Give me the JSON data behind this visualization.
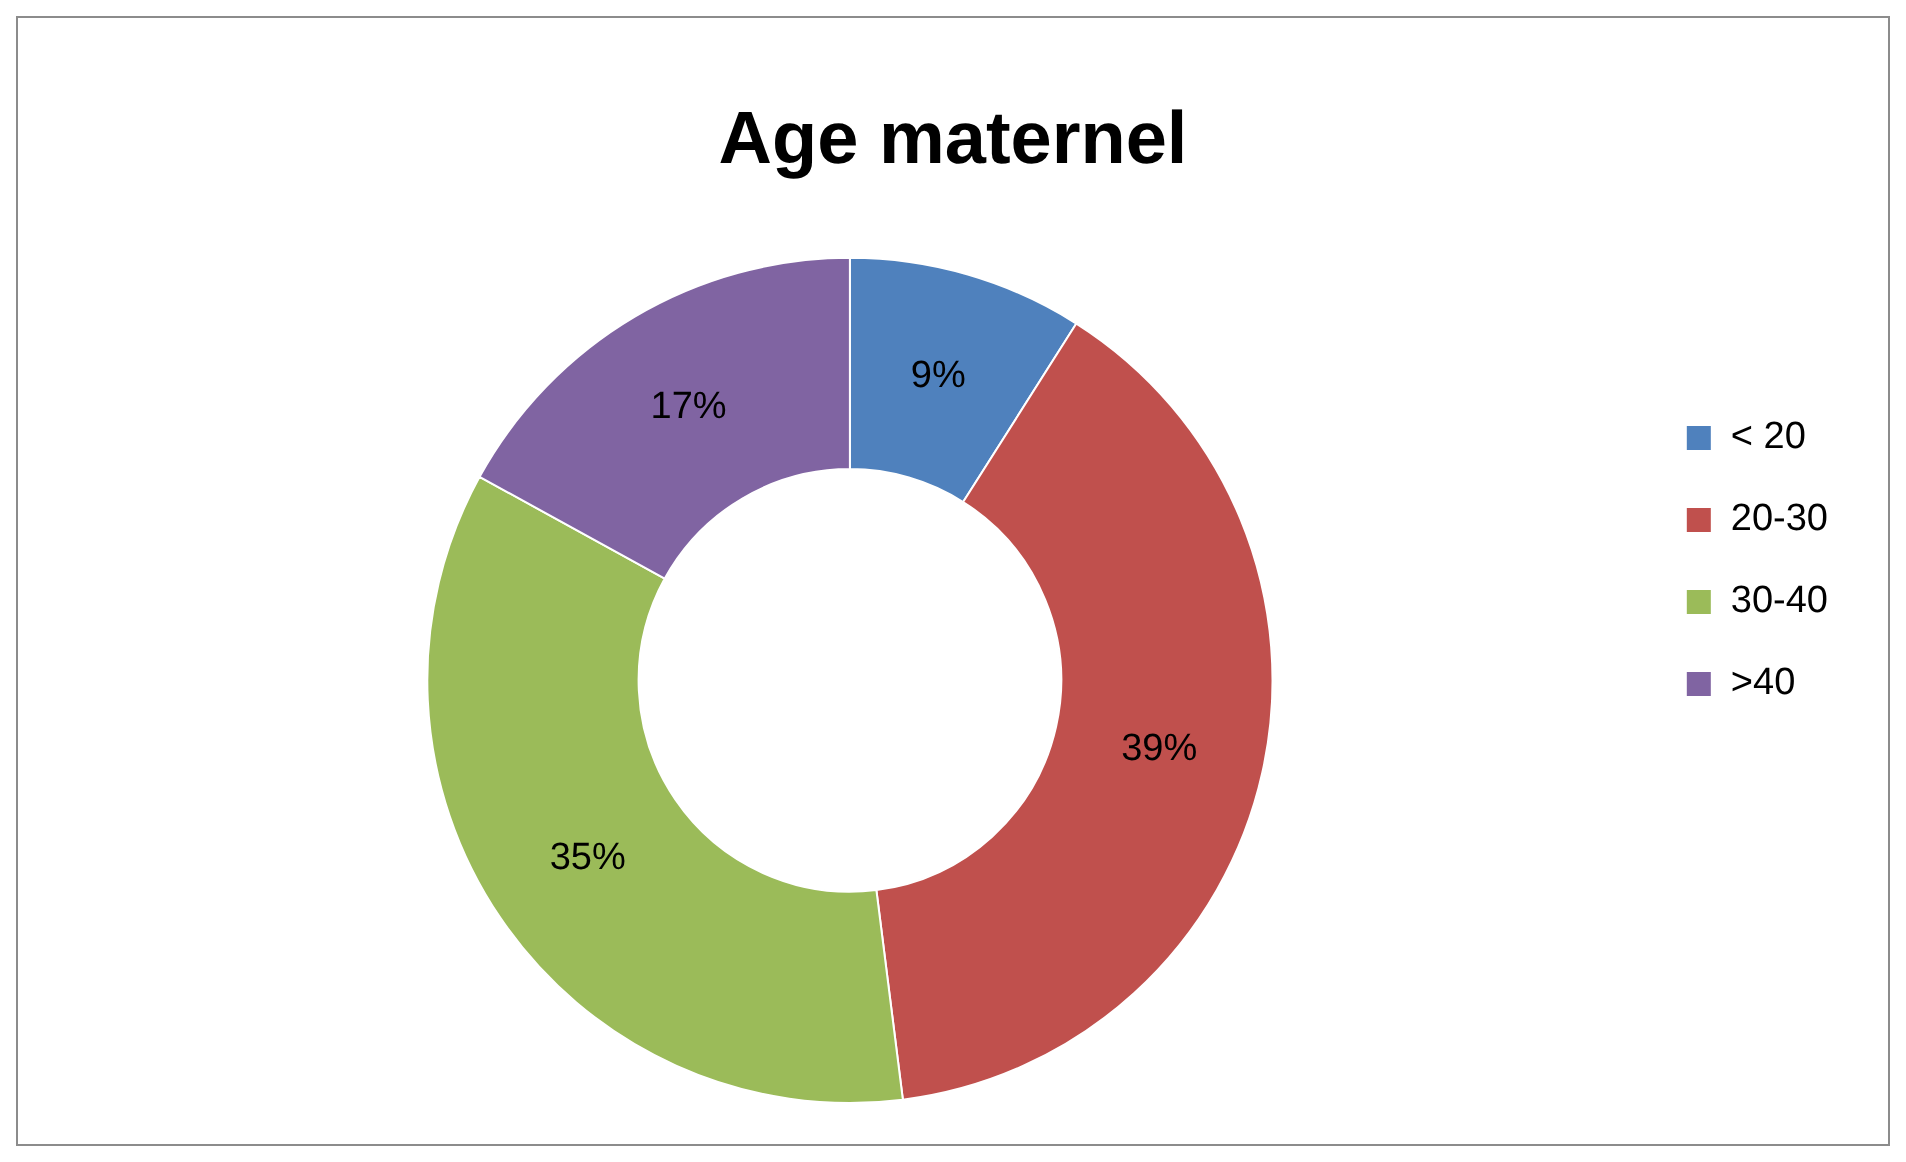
{
  "chart_data": {
    "type": "donut",
    "title": "Age maternel",
    "categories": [
      "< 20",
      "20-30",
      "30-40",
      ">40"
    ],
    "values": [
      9,
      39,
      35,
      17
    ],
    "colors": [
      "#4f81bd",
      "#c0504d",
      "#9bbb59",
      "#8064a2"
    ],
    "value_labels": [
      "9%",
      "39%",
      "35%",
      "17%"
    ],
    "legend": "right"
  }
}
